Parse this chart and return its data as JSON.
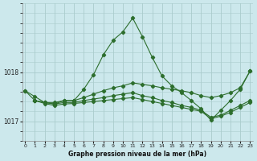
{
  "xlabel": "Graphe pression niveau de la mer (hPa)",
  "bg_color": "#cce8ec",
  "grid_color": "#aacccc",
  "line_color": "#2d6e2d",
  "ylim": [
    1016.6,
    1019.4
  ],
  "xlim": [
    -0.3,
    23.3
  ],
  "yticks": [
    1017,
    1018
  ],
  "xticks": [
    0,
    1,
    2,
    3,
    4,
    5,
    6,
    7,
    8,
    9,
    10,
    11,
    12,
    13,
    14,
    15,
    16,
    17,
    18,
    19,
    20,
    21,
    22,
    23
  ],
  "curves": [
    {
      "x": [
        0,
        1,
        2,
        3,
        4,
        5,
        6,
        7,
        8,
        9,
        10,
        11,
        12,
        13,
        14,
        15,
        16,
        17,
        18,
        19,
        20,
        21,
        22,
        23
      ],
      "y": [
        1017.62,
        1017.5,
        1017.38,
        1017.35,
        1017.42,
        1017.42,
        1017.65,
        1017.95,
        1018.35,
        1018.65,
        1018.82,
        1019.1,
        1018.72,
        1018.3,
        1017.92,
        1017.72,
        1017.58,
        1017.42,
        1017.25,
        1017.02,
        1017.22,
        1017.42,
        1017.65,
        1018.02
      ]
    },
    {
      "x": [
        0,
        1,
        2,
        3,
        4,
        5,
        6,
        7,
        8,
        9,
        10,
        11,
        12,
        13,
        14,
        15,
        16,
        17,
        18,
        19,
        20,
        21,
        22,
        23
      ],
      "y": [
        1017.62,
        1017.42,
        1017.38,
        1017.38,
        1017.42,
        1017.42,
        1017.48,
        1017.55,
        1017.62,
        1017.68,
        1017.72,
        1017.78,
        1017.75,
        1017.72,
        1017.68,
        1017.65,
        1017.62,
        1017.58,
        1017.52,
        1017.48,
        1017.52,
        1017.58,
        1017.68,
        1018.02
      ]
    },
    {
      "x": [
        1,
        2,
        3,
        4,
        5,
        6,
        7,
        8,
        9,
        10,
        11,
        12,
        13,
        14,
        15,
        16,
        17,
        18,
        19,
        20,
        21,
        22,
        23
      ],
      "y": [
        1017.42,
        1017.38,
        1017.35,
        1017.38,
        1017.38,
        1017.42,
        1017.45,
        1017.48,
        1017.52,
        1017.55,
        1017.58,
        1017.52,
        1017.48,
        1017.42,
        1017.38,
        1017.32,
        1017.28,
        1017.22,
        1017.08,
        1017.12,
        1017.22,
        1017.32,
        1017.42
      ]
    },
    {
      "x": [
        1,
        2,
        3,
        4,
        5,
        6,
        7,
        8,
        9,
        10,
        11,
        12,
        13,
        14,
        15,
        16,
        17,
        18,
        19,
        20,
        21,
        22,
        23
      ],
      "y": [
        1017.42,
        1017.36,
        1017.32,
        1017.35,
        1017.36,
        1017.38,
        1017.4,
        1017.42,
        1017.44,
        1017.46,
        1017.48,
        1017.44,
        1017.4,
        1017.36,
        1017.32,
        1017.28,
        1017.24,
        1017.2,
        1017.05,
        1017.1,
        1017.18,
        1017.28,
        1017.38
      ]
    }
  ]
}
